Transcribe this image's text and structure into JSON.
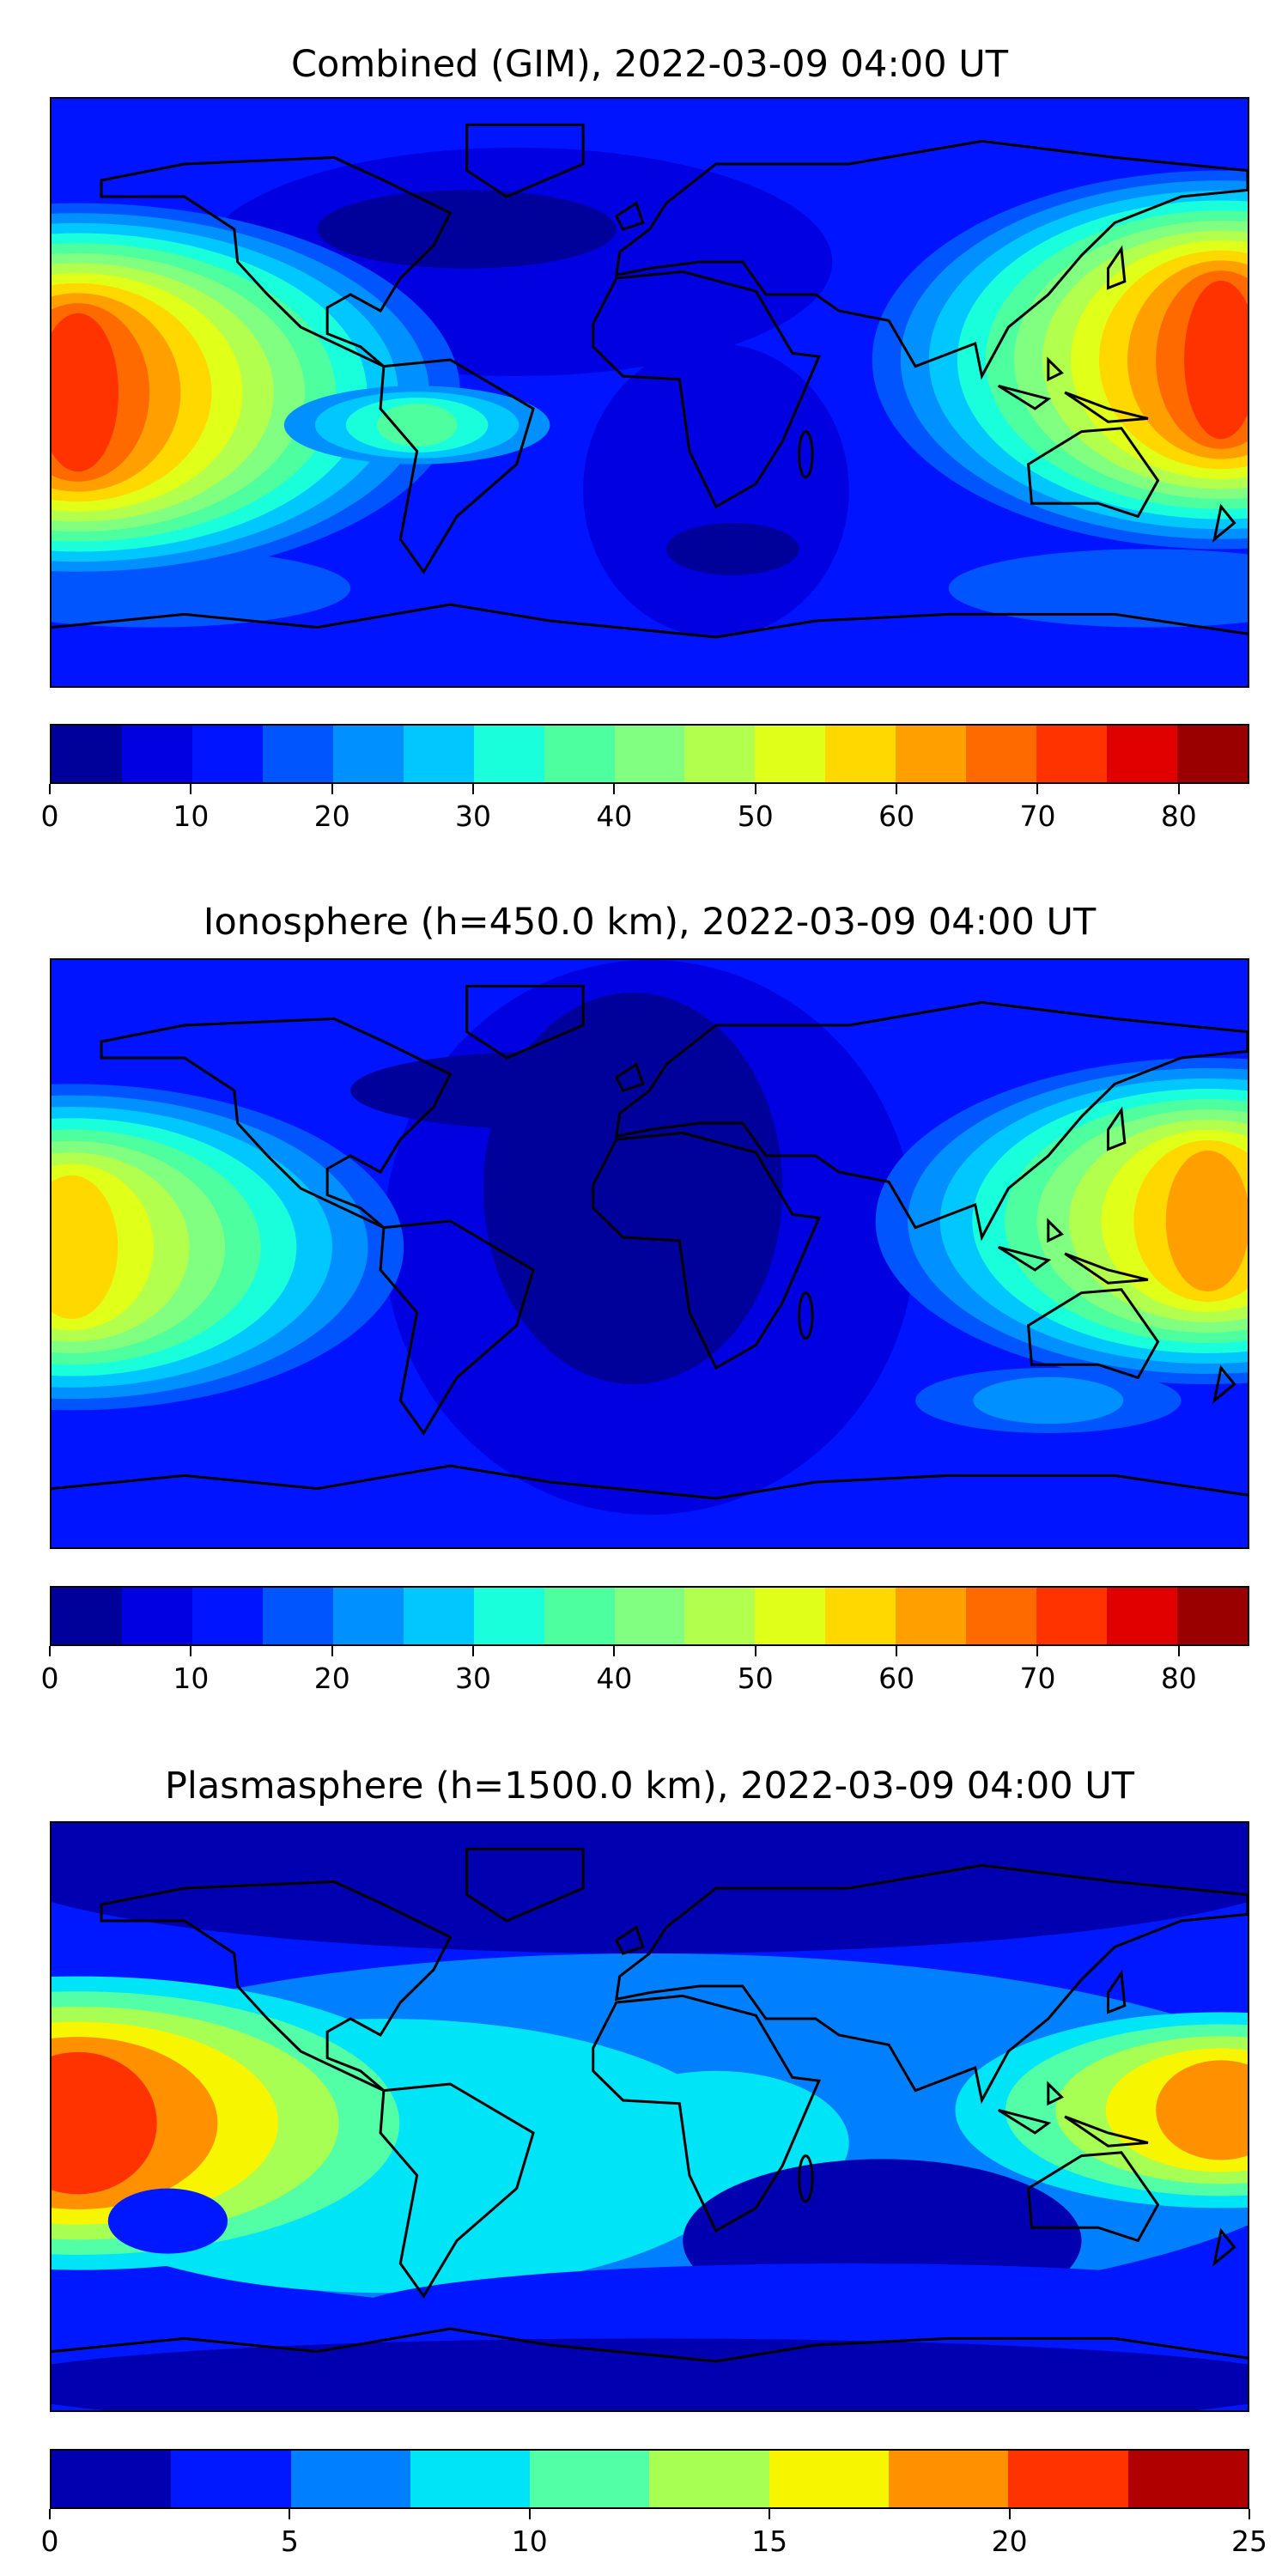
{
  "chart_data": [
    {
      "type": "heatmap",
      "subtype": "filled-contour world map",
      "title": "Combined (GIM), 2022-03-09 04:00 UT",
      "colorbar": {
        "min": 0,
        "max": 85,
        "step": 5,
        "ticks": [
          0,
          10,
          20,
          30,
          40,
          50,
          60,
          70,
          80
        ],
        "tick_labels": [
          "0",
          "10",
          "20",
          "30",
          "40",
          "50",
          "60",
          "70",
          "80"
        ]
      },
      "colors": [
        "#00009a",
        "#0000e0",
        "#0014ff",
        "#0055ff",
        "#0090ff",
        "#00c8ff",
        "#19ffdc",
        "#4dff9e",
        "#80ff80",
        "#b3ff4d",
        "#e0ff19",
        "#ffd800",
        "#ffa000",
        "#ff6a00",
        "#ff3300",
        "#e00000",
        "#9a0000"
      ],
      "features": {
        "max_region": "western Pacific / near 180° longitude, equatorial",
        "approx_peak": 70,
        "min_region": "North Atlantic / South Atlantic",
        "approx_min": 5
      }
    },
    {
      "type": "heatmap",
      "subtype": "filled-contour world map",
      "title": "Ionosphere  (h=450.0 km), 2022-03-09 04:00 UT",
      "colorbar": {
        "min": 0,
        "max": 85,
        "step": 5,
        "ticks": [
          0,
          10,
          20,
          30,
          40,
          50,
          60,
          70,
          80
        ],
        "tick_labels": [
          "0",
          "10",
          "20",
          "30",
          "40",
          "50",
          "60",
          "70",
          "80"
        ]
      },
      "colors": [
        "#00009a",
        "#0000e0",
        "#0014ff",
        "#0055ff",
        "#0090ff",
        "#00c8ff",
        "#19ffdc",
        "#4dff9e",
        "#80ff80",
        "#b3ff4d",
        "#e0ff19",
        "#ffd800",
        "#ffa000",
        "#ff6a00",
        "#ff3300",
        "#e00000",
        "#9a0000"
      ],
      "features": {
        "max_region": "western Pacific, equatorial",
        "approx_peak": 60,
        "min_region": "Atlantic / Africa",
        "approx_min": 5
      }
    },
    {
      "type": "heatmap",
      "subtype": "filled-contour world map",
      "title": "Plasmasphere (h=1500.0 km), 2022-03-09 04:00 UT",
      "colorbar": {
        "min": 0,
        "max": 25,
        "step": 2.5,
        "ticks": [
          0,
          5,
          10,
          15,
          20,
          25
        ],
        "tick_labels": [
          "0",
          "5",
          "10",
          "15",
          "20",
          "25"
        ]
      },
      "colors": [
        "#0000b0",
        "#0018ff",
        "#0080ff",
        "#00e4f8",
        "#52ffa6",
        "#a6ff52",
        "#f8f500",
        "#ff9000",
        "#ff3300",
        "#b00000"
      ],
      "features": {
        "max_region": "eastern Pacific, tropics",
        "approx_peak": 22,
        "min_region": "high latitudes / South Indian Ocean",
        "approx_min": 0
      }
    }
  ]
}
